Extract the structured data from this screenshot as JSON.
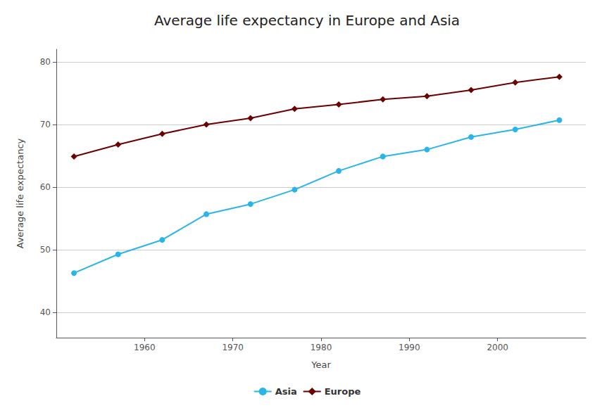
{
  "chart_data": {
    "type": "line",
    "title": "Average life expectancy in Europe and Asia",
    "xlabel": "Year",
    "ylabel": "Average life expectancy",
    "x": [
      1952,
      1957,
      1962,
      1967,
      1972,
      1977,
      1982,
      1987,
      1992,
      1997,
      2002,
      2007
    ],
    "series": [
      {
        "name": "Asia",
        "color": "#29b5e8",
        "marker": "circle",
        "values": [
          46.3,
          49.3,
          51.6,
          55.7,
          57.3,
          59.6,
          62.6,
          64.9,
          66.0,
          68.0,
          69.2,
          70.7
        ]
      },
      {
        "name": "Europe",
        "color": "#6b0000",
        "marker": "diamond",
        "values": [
          64.9,
          66.8,
          68.5,
          70.0,
          71.0,
          72.5,
          73.2,
          74.0,
          74.5,
          75.5,
          76.7,
          77.6
        ]
      }
    ],
    "xlim": [
      1950,
      2010
    ],
    "xticks": [
      1960,
      1970,
      1980,
      1990,
      2000
    ],
    "ylim": [
      36,
      82
    ],
    "yticks": [
      40,
      50,
      60,
      70,
      80
    ],
    "grid": true,
    "legend": "bottom"
  }
}
